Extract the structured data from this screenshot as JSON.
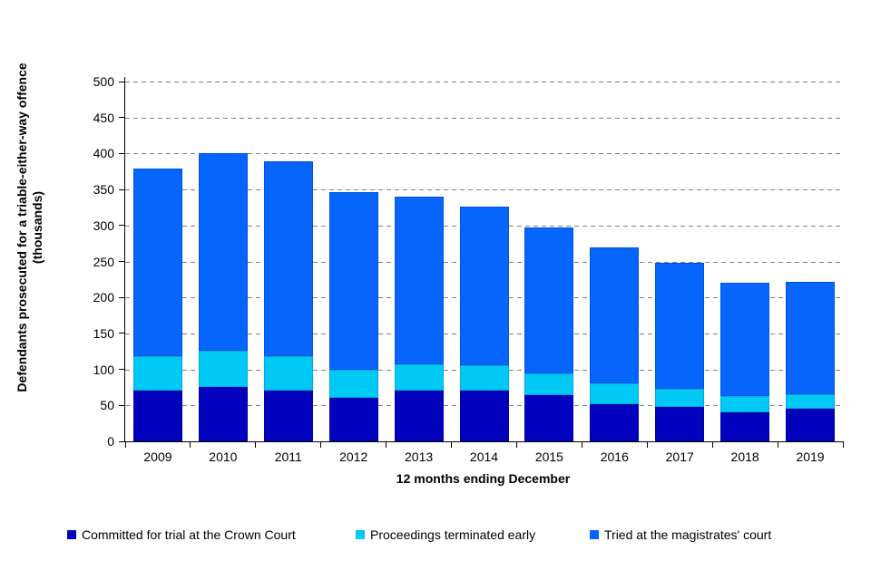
{
  "chart_data": {
    "type": "bar",
    "stacked": true,
    "title": "",
    "xlabel": "12 months ending December",
    "ylabel_line1": "Defendants prosecuted for a triable-either-way offence",
    "ylabel_line2": "(thousands)",
    "ylim": [
      0,
      500
    ],
    "yticks": [
      0,
      50,
      100,
      150,
      200,
      250,
      300,
      350,
      400,
      450,
      500
    ],
    "grid": "horizontal-dashed",
    "legend_position": "bottom",
    "categories": [
      "2009",
      "2010",
      "2011",
      "2012",
      "2013",
      "2014",
      "2015",
      "2016",
      "2017",
      "2018",
      "2019"
    ],
    "series": [
      {
        "name": "Committed for trial at the Crown Court",
        "color": "#0101BE",
        "border_color": "#0000A0",
        "values": [
          70,
          76,
          70,
          60,
          70,
          71,
          64,
          52,
          48,
          40,
          45
        ]
      },
      {
        "name": "Proceedings terminated early",
        "color": "#00C9F5",
        "border_color": "#00AADD",
        "values": [
          48,
          50,
          48,
          40,
          37,
          35,
          30,
          29,
          25,
          23,
          21
        ]
      },
      {
        "name": "Tried at the magistrates' court",
        "color": "#0565FC",
        "border_color": "#0353D8",
        "values": [
          261,
          275,
          271,
          246,
          233,
          220,
          203,
          188,
          175,
          157,
          156
        ]
      }
    ],
    "stack_totals": [
      379,
      401,
      389,
      346,
      340,
      326,
      297,
      269,
      248,
      220,
      222
    ],
    "colors": {
      "gridline": "#7F7F7F",
      "axis": "#000000",
      "text": "#000000",
      "background": "#FFFFFF"
    }
  }
}
